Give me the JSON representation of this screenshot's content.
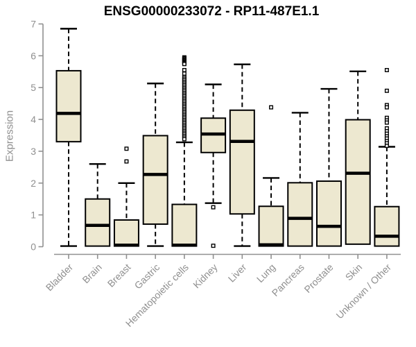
{
  "chart_data": {
    "type": "box",
    "title": "ENSG00000233072 - RP11-487E1.1",
    "ylabel": "Expression",
    "xlabel": "",
    "ylim": [
      0,
      7
    ],
    "y_ticks": [
      0,
      1,
      2,
      3,
      4,
      5,
      6,
      7
    ],
    "grid": false,
    "legend": false,
    "x_tick_label_rotation": 45,
    "categories": [
      "Bladder",
      "Brain",
      "Breast",
      "Gastric",
      "Hematopoietic cells",
      "Kidney",
      "Liver",
      "Lung",
      "Pancreas",
      "Prostate",
      "Skin",
      "Unknown / Other"
    ],
    "series": [
      {
        "category": "Bladder",
        "whisker_low": 0.02,
        "q1": 3.3,
        "median": 4.19,
        "q3": 5.53,
        "whisker_high": 6.85,
        "outliers": []
      },
      {
        "category": "Brain",
        "whisker_low": 0.02,
        "q1": 0.02,
        "median": 0.67,
        "q3": 1.5,
        "whisker_high": 2.6,
        "outliers": []
      },
      {
        "category": "Breast",
        "whisker_low": 0.02,
        "q1": 0.02,
        "median": 0.05,
        "q3": 0.84,
        "whisker_high": 2.0,
        "outliers": [
          3.08,
          2.68
        ]
      },
      {
        "category": "Gastric",
        "whisker_low": 0.02,
        "q1": 0.71,
        "median": 2.27,
        "q3": 3.49,
        "whisker_high": 5.13,
        "outliers": []
      },
      {
        "category": "Hematopoietic cells",
        "whisker_low": 0.02,
        "q1": 0.02,
        "median": 0.05,
        "q3": 1.33,
        "whisker_high": 3.28,
        "outliers": [
          5.95,
          5.92,
          5.89,
          5.86,
          5.83,
          5.8,
          5.77,
          5.74,
          5.55,
          5.44,
          5.33,
          5.28,
          5.23,
          5.18,
          5.13,
          5.08,
          5.03,
          4.98,
          4.93,
          4.88,
          4.83,
          4.78,
          4.73,
          4.68,
          4.63,
          4.58,
          4.53,
          4.48,
          4.43,
          4.38,
          4.33,
          4.28,
          4.23,
          4.18,
          4.13,
          4.08,
          4.03,
          3.98,
          3.93,
          3.88,
          3.83,
          3.78,
          3.73,
          3.68,
          3.63,
          3.58,
          3.53,
          3.48,
          3.43,
          3.38
        ]
      },
      {
        "category": "Kidney",
        "whisker_low": 1.37,
        "q1": 2.96,
        "median": 3.54,
        "q3": 4.04,
        "whisker_high": 5.1,
        "outliers": [
          1.24,
          0.03
        ]
      },
      {
        "category": "Liver",
        "whisker_low": 0.02,
        "q1": 1.03,
        "median": 3.31,
        "q3": 4.29,
        "whisker_high": 5.73,
        "outliers": []
      },
      {
        "category": "Lung",
        "whisker_low": 0.02,
        "q1": 0.02,
        "median": 0.06,
        "q3": 1.27,
        "whisker_high": 2.16,
        "outliers": [
          4.38
        ]
      },
      {
        "category": "Pancreas",
        "whisker_low": 0.02,
        "q1": 0.02,
        "median": 0.89,
        "q3": 2.01,
        "whisker_high": 4.21,
        "outliers": []
      },
      {
        "category": "Prostate",
        "whisker_low": 0.02,
        "q1": 0.02,
        "median": 0.64,
        "q3": 2.06,
        "whisker_high": 4.96,
        "outliers": []
      },
      {
        "category": "Skin",
        "whisker_low": 0.08,
        "q1": 0.08,
        "median": 2.31,
        "q3": 3.99,
        "whisker_high": 5.51,
        "outliers": []
      },
      {
        "category": "Unknown / Other",
        "whisker_low": 0.02,
        "q1": 0.02,
        "median": 0.33,
        "q3": 1.26,
        "whisker_high": 3.14,
        "outliers": [
          5.55,
          4.9,
          4.45,
          4.38,
          4.05,
          3.97,
          3.9,
          3.72,
          3.63,
          3.55,
          3.47,
          3.4,
          3.32,
          3.25,
          3.17
        ]
      }
    ],
    "style": {
      "box_fill": "#ede8d0",
      "box_stroke": "#000000",
      "median_color": "#000000",
      "whisker_color": "#000000",
      "whisker_style": "dashed",
      "outlier_marker": "open-square",
      "axis_color": "#909090",
      "tick_label_color": "#8f8f8f",
      "title_color": "#000000",
      "background": "#ffffff"
    }
  }
}
